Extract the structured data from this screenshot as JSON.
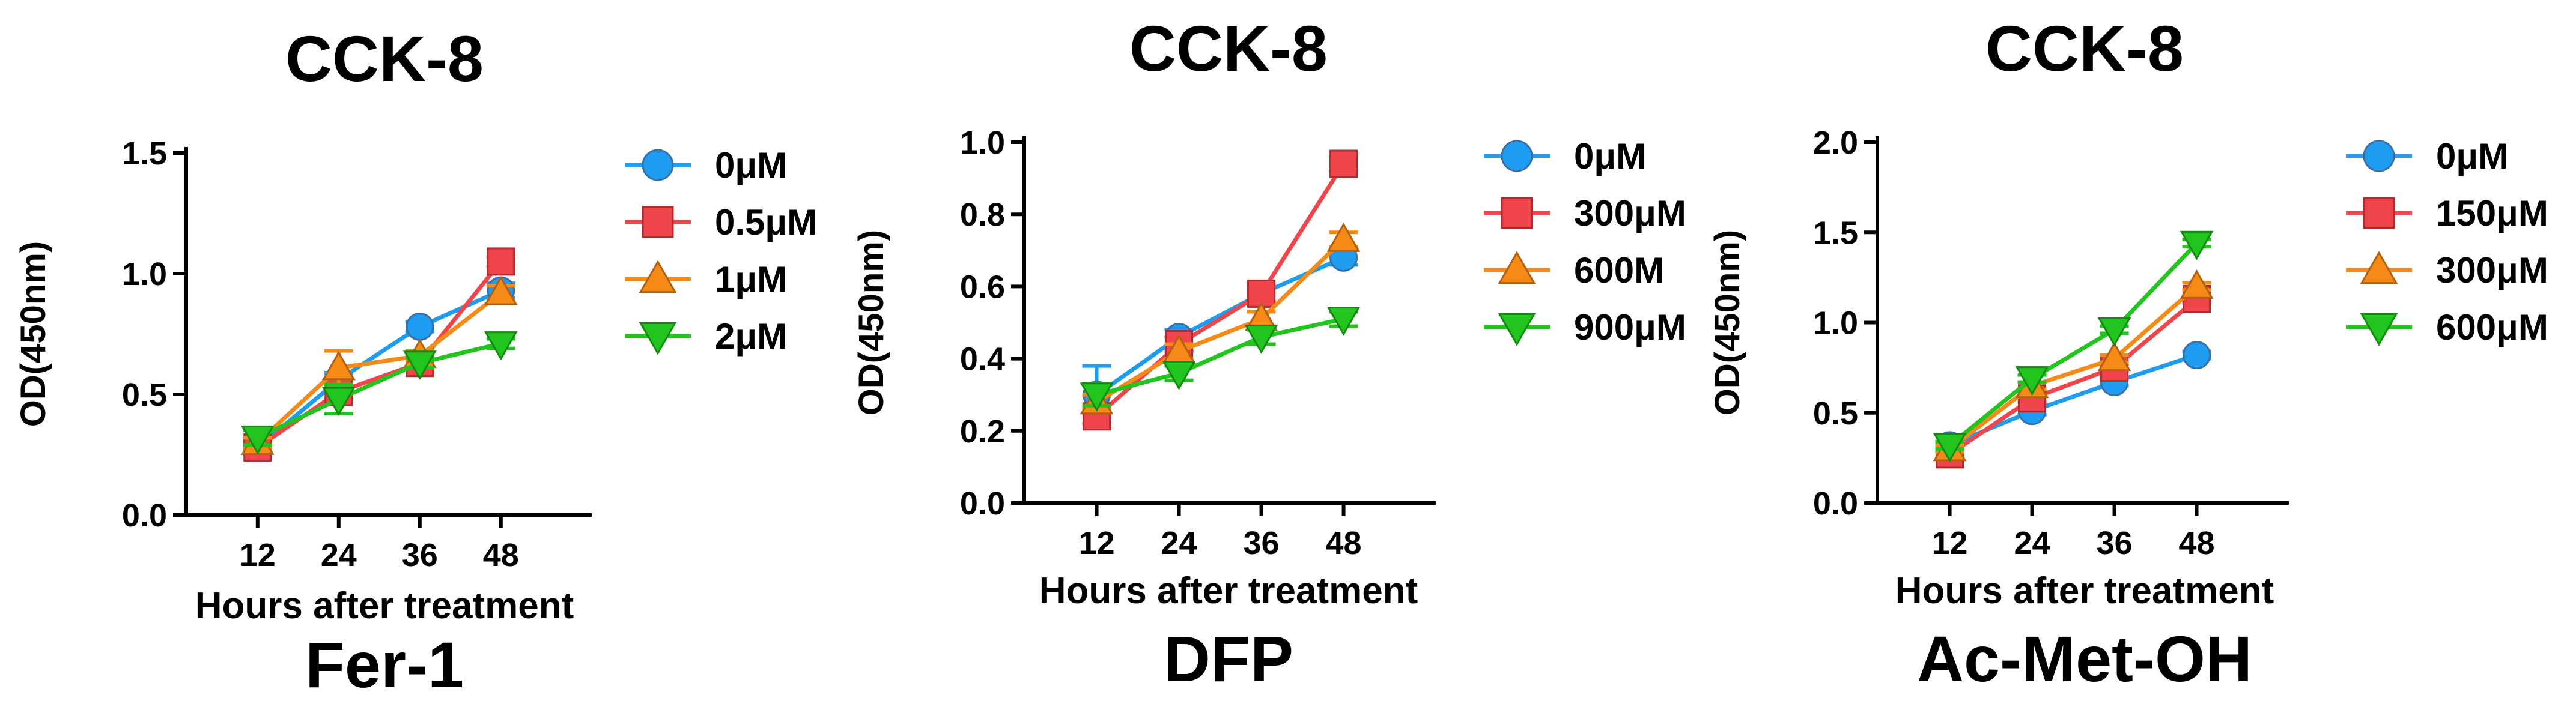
{
  "chart_data": [
    {
      "type": "line",
      "title": "CCK-8",
      "subtitle": "Fer-1",
      "xlabel": "Hours after treatment",
      "ylabel": "OD(450nm)",
      "x": [
        12,
        24,
        36,
        48
      ],
      "ylim": [
        0,
        1.5
      ],
      "yticks": [
        "0.0",
        "0.5",
        "1.0",
        "1.5"
      ],
      "grid": false,
      "legend_position": "right",
      "series": [
        {
          "name": "0μM",
          "color": "#1e9cf0",
          "marker": "circle",
          "values": [
            0.28,
            0.56,
            0.78,
            0.93
          ],
          "errors": [
            0.03,
            0.03,
            0.02,
            0.03
          ]
        },
        {
          "name": "0.5μM",
          "color": "#f0454a",
          "marker": "square",
          "values": [
            0.28,
            0.51,
            0.63,
            1.05
          ],
          "errors": [
            0.02,
            0.03,
            0.02,
            0.02
          ]
        },
        {
          "name": "1μM",
          "color": "#f58a17",
          "marker": "triangle-up",
          "values": [
            0.3,
            0.61,
            0.66,
            0.92
          ],
          "errors": [
            0.02,
            0.07,
            0.02,
            0.03
          ]
        },
        {
          "name": "2μM",
          "color": "#22c51d",
          "marker": "triangle-down",
          "values": [
            0.32,
            0.48,
            0.63,
            0.71
          ],
          "errors": [
            0.03,
            0.06,
            0.02,
            0.02
          ]
        }
      ]
    },
    {
      "type": "line",
      "title": "CCK-8",
      "subtitle": "DFP",
      "xlabel": "Hours after treatment",
      "ylabel": "OD(450nm)",
      "x": [
        12,
        24,
        36,
        48
      ],
      "ylim": [
        0,
        1.0
      ],
      "yticks": [
        "0.0",
        "0.2",
        "0.4",
        "0.6",
        "0.8",
        "1.0"
      ],
      "grid": false,
      "legend_position": "right",
      "series": [
        {
          "name": "0μM",
          "color": "#1e9cf0",
          "marker": "circle",
          "values": [
            0.3,
            0.46,
            0.58,
            0.68
          ],
          "errors": [
            0.08,
            0.02,
            0.02,
            0.02
          ]
        },
        {
          "name": "300μM",
          "color": "#f0454a",
          "marker": "square",
          "values": [
            0.24,
            0.44,
            0.58,
            0.94
          ],
          "errors": [
            0.02,
            0.02,
            0.02,
            0.02
          ]
        },
        {
          "name": "600M",
          "color": "#f58a17",
          "marker": "triangle-up",
          "values": [
            0.28,
            0.42,
            0.51,
            0.73
          ],
          "errors": [
            0.02,
            0.02,
            0.02,
            0.02
          ]
        },
        {
          "name": "900μM",
          "color": "#22c51d",
          "marker": "triangle-down",
          "values": [
            0.3,
            0.36,
            0.46,
            0.51
          ],
          "errors": [
            0.03,
            0.02,
            0.02,
            0.02
          ]
        }
      ]
    },
    {
      "type": "line",
      "title": "CCK-8",
      "subtitle": "Ac-Met-OH",
      "xlabel": "Hours after treatment",
      "ylabel": "OD(450nm)",
      "x": [
        12,
        24,
        36,
        48
      ],
      "ylim": [
        0,
        2.0
      ],
      "yticks": [
        "0.0",
        "0.5",
        "1.0",
        "1.5",
        "2.0"
      ],
      "grid": false,
      "legend_position": "right",
      "series": [
        {
          "name": "0μM",
          "color": "#1e9cf0",
          "marker": "circle",
          "values": [
            0.32,
            0.51,
            0.67,
            0.82
          ],
          "errors": [
            0.02,
            0.02,
            0.02,
            0.02
          ]
        },
        {
          "name": "150μM",
          "color": "#f0454a",
          "marker": "square",
          "values": [
            0.27,
            0.58,
            0.75,
            1.13
          ],
          "errors": [
            0.02,
            0.02,
            0.02,
            0.02
          ]
        },
        {
          "name": "300μM",
          "color": "#f58a17",
          "marker": "triangle-up",
          "values": [
            0.3,
            0.65,
            0.8,
            1.2
          ],
          "errors": [
            0.02,
            0.02,
            0.02,
            0.02
          ]
        },
        {
          "name": "600μM",
          "color": "#22c51d",
          "marker": "triangle-down",
          "values": [
            0.32,
            0.69,
            0.96,
            1.44
          ],
          "errors": [
            0.02,
            0.02,
            0.02,
            0.02
          ]
        }
      ]
    }
  ]
}
